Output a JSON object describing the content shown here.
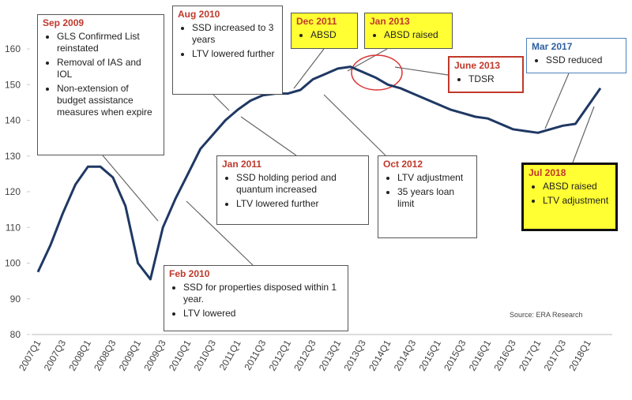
{
  "chart_data": {
    "type": "line",
    "source": "Source: ERA Research",
    "categories": [
      "2007Q1",
      null,
      "2007Q3",
      null,
      "2008Q1",
      null,
      "2008Q3",
      null,
      "2009Q1",
      null,
      "2009Q3",
      null,
      "2010Q1",
      null,
      "2010Q3",
      null,
      "2011Q1",
      null,
      "2011Q3",
      null,
      "2012Q1",
      null,
      "2012Q3",
      null,
      "2013Q1",
      null,
      "2013Q3",
      null,
      "2014Q1",
      null,
      "2014Q3",
      null,
      "2015Q1",
      null,
      "2015Q3",
      null,
      "2016Q1",
      null,
      "2016Q3",
      null,
      "2017Q1",
      null,
      "2017Q3",
      null,
      "2018Q1",
      null
    ],
    "values": [
      97.5,
      105,
      114,
      122,
      127,
      127,
      124,
      116,
      100,
      95.5,
      110,
      118,
      125,
      132,
      136,
      140,
      143,
      145.5,
      147,
      147.5,
      147.5,
      148.5,
      151.5,
      153,
      154.5,
      155,
      153.5,
      152,
      150,
      149,
      147.5,
      146,
      144.5,
      143,
      142,
      141,
      140.5,
      139,
      137.5,
      137,
      136.5,
      137.5,
      138.5,
      139,
      144,
      149
    ],
    "color": "#1f3864",
    "ylim": [
      80,
      160
    ],
    "yticks": [
      80,
      90,
      100,
      110,
      120,
      130,
      140,
      150,
      160
    ],
    "grid": false,
    "annotations": [
      {
        "title": "Sep 2009",
        "items": [
          "GLS Confirmed List reinstated",
          "Removal of IAS and IOL",
          "Non-extension of budget assistance measures when expire"
        ]
      },
      {
        "title": "Aug 2010",
        "items": [
          "SSD increased to 3 years",
          "LTV lowered further"
        ]
      },
      {
        "title": "Dec 2011",
        "items": [
          "ABSD"
        ]
      },
      {
        "title": "Jan 2013",
        "items": [
          "ABSD raised"
        ]
      },
      {
        "title": "June 2013",
        "items": [
          "TDSR"
        ]
      },
      {
        "title": "Mar 2017",
        "items": [
          "SSD reduced"
        ]
      },
      {
        "title": "Jan 2011",
        "items": [
          "SSD holding period and quantum increased",
          "LTV lowered further"
        ]
      },
      {
        "title": "Oct 2012",
        "items": [
          "LTV adjustment",
          "35 years loan limit"
        ]
      },
      {
        "title": "Jul 2018",
        "items": [
          "ABSD raised",
          "LTV adjustment"
        ]
      },
      {
        "title": "Feb 2010",
        "items": [
          "SSD for properties disposed within 1 year.",
          "LTV lowered"
        ]
      }
    ]
  }
}
